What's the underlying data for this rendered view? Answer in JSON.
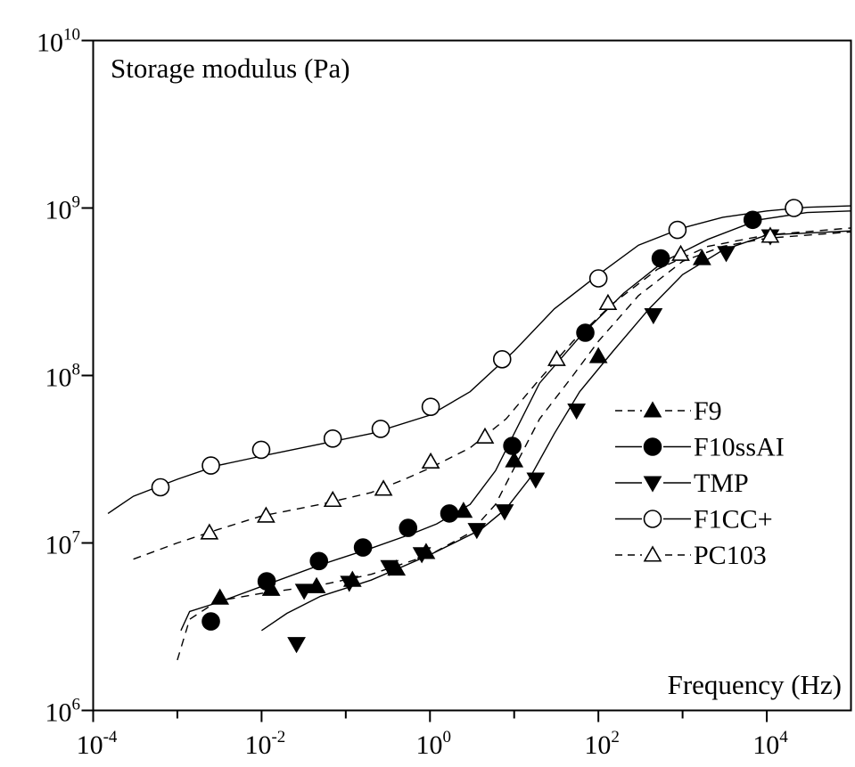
{
  "chart_data": {
    "type": "scatter",
    "x_scale": "log",
    "y_scale": "log",
    "xlim": [
      0.0001,
      100000
    ],
    "ylim": [
      1000000,
      10000000000
    ],
    "xlabel": "Frequency (Hz)",
    "ylabel": "Storage modulus (Pa)",
    "grid": false,
    "legend_position": "right-middle",
    "x_ticks": [
      {
        "base": "10",
        "exp": "-4",
        "value": 0.0001
      },
      {
        "base": "10",
        "exp": "-2",
        "value": 0.01
      },
      {
        "base": "10",
        "exp": "0",
        "value": 1
      },
      {
        "base": "10",
        "exp": "2",
        "value": 100
      },
      {
        "base": "10",
        "exp": "4",
        "value": 10000
      }
    ],
    "x_minor_ticks": [
      0.001,
      0.1,
      10,
      1000
    ],
    "y_ticks": [
      {
        "base": "10",
        "exp": "6",
        "value": 1000000
      },
      {
        "base": "10",
        "exp": "7",
        "value": 10000000
      },
      {
        "base": "10",
        "exp": "8",
        "value": 100000000
      },
      {
        "base": "10",
        "exp": "9",
        "value": 1000000000
      },
      {
        "base": "10",
        "exp": "10",
        "value": 10000000000
      }
    ],
    "series": [
      {
        "name": "F9",
        "marker": "triangle-up-filled",
        "line": "dashed",
        "points": [
          [
            0.0032,
            4700000
          ],
          [
            0.013,
            5300000
          ],
          [
            0.045,
            5500000
          ],
          [
            0.12,
            6000000
          ],
          [
            0.4,
            7000000
          ],
          [
            0.9,
            8800000
          ],
          [
            2.5,
            15500000
          ],
          [
            10,
            31000000
          ],
          [
            100,
            130000000
          ],
          [
            1700,
            500000000
          ]
        ],
        "fit": [
          [
            0.001,
            2000000
          ],
          [
            0.0014,
            3500000
          ],
          [
            0.003,
            4500000
          ],
          [
            0.01,
            5000000
          ],
          [
            0.05,
            5600000
          ],
          [
            0.2,
            6500000
          ],
          [
            1,
            8500000
          ],
          [
            3,
            11500000
          ],
          [
            6,
            17000000
          ],
          [
            10,
            28000000
          ],
          [
            20,
            55000000
          ],
          [
            50,
            100000000
          ],
          [
            100,
            160000000
          ],
          [
            300,
            300000000
          ],
          [
            1000,
            480000000
          ],
          [
            3000,
            590000000
          ],
          [
            10000,
            660000000
          ],
          [
            100000,
            720000000
          ]
        ]
      },
      {
        "name": "F10ssAI",
        "marker": "circle-filled",
        "line": "solid",
        "points": [
          [
            0.0025,
            3400000
          ],
          [
            0.0115,
            5900000
          ],
          [
            0.048,
            7800000
          ],
          [
            0.16,
            9400000
          ],
          [
            0.55,
            12300000
          ],
          [
            1.7,
            15000000
          ],
          [
            9.5,
            38000000
          ],
          [
            70,
            180000000
          ],
          [
            550,
            500000000
          ],
          [
            6800,
            850000000
          ]
        ],
        "fit": [
          [
            0.0011,
            3000000
          ],
          [
            0.0014,
            3900000
          ],
          [
            0.003,
            4400000
          ],
          [
            0.01,
            5500000
          ],
          [
            0.05,
            7400000
          ],
          [
            0.2,
            9300000
          ],
          [
            0.6,
            11300000
          ],
          [
            1.2,
            13000000
          ],
          [
            3,
            17000000
          ],
          [
            6,
            27000000
          ],
          [
            10,
            45000000
          ],
          [
            20,
            90000000
          ],
          [
            60,
            170000000
          ],
          [
            200,
            310000000
          ],
          [
            600,
            480000000
          ],
          [
            2000,
            650000000
          ],
          [
            8000,
            850000000
          ],
          [
            30000,
            940000000
          ],
          [
            100000,
            960000000
          ]
        ]
      },
      {
        "name": "TMP",
        "marker": "triangle-down-filled",
        "line": "solid",
        "points": [
          [
            0.026,
            2500000
          ],
          [
            0.032,
            5200000
          ],
          [
            0.11,
            5800000
          ],
          [
            0.33,
            7200000
          ],
          [
            0.8,
            8600000
          ],
          [
            3.6,
            12000000
          ],
          [
            7.7,
            15500000
          ],
          [
            18,
            24000000
          ],
          [
            55,
            62000000
          ],
          [
            450,
            230000000
          ],
          [
            3300,
            540000000
          ],
          [
            11000,
            680000000
          ]
        ],
        "fit": [
          [
            0.01,
            3000000
          ],
          [
            0.02,
            3800000
          ],
          [
            0.05,
            4800000
          ],
          [
            0.2,
            6000000
          ],
          [
            1,
            8500000
          ],
          [
            4,
            12000000
          ],
          [
            8,
            16000000
          ],
          [
            15,
            24000000
          ],
          [
            30,
            45000000
          ],
          [
            60,
            80000000
          ],
          [
            150,
            140000000
          ],
          [
            400,
            250000000
          ],
          [
            1000,
            400000000
          ],
          [
            3000,
            560000000
          ],
          [
            10000,
            690000000
          ],
          [
            100000,
            730000000
          ]
        ]
      },
      {
        "name": "F1CC+",
        "marker": "circle-open",
        "line": "solid",
        "points": [
          [
            0.00063,
            21500000
          ],
          [
            0.0025,
            29000000
          ],
          [
            0.0099,
            36000000
          ],
          [
            0.07,
            42000000
          ],
          [
            0.26,
            48000000
          ],
          [
            1.02,
            65000000
          ],
          [
            7.2,
            125000000
          ],
          [
            100,
            380000000
          ],
          [
            870,
            740000000
          ],
          [
            21000,
            1000000000
          ]
        ],
        "fit": [
          [
            0.00015,
            15000000
          ],
          [
            0.0003,
            19000000
          ],
          [
            0.001,
            24000000
          ],
          [
            0.003,
            29000000
          ],
          [
            0.01,
            33000000
          ],
          [
            0.05,
            39000000
          ],
          [
            0.2,
            45000000
          ],
          [
            1,
            58000000
          ],
          [
            3,
            80000000
          ],
          [
            10,
            140000000
          ],
          [
            30,
            250000000
          ],
          [
            100,
            400000000
          ],
          [
            300,
            600000000
          ],
          [
            1000,
            760000000
          ],
          [
            3000,
            880000000
          ],
          [
            10000,
            960000000
          ],
          [
            30000,
            1010000000
          ],
          [
            100000,
            1030000000
          ]
        ]
      },
      {
        "name": "PC103",
        "marker": "triangle-up-open",
        "line": "dashed",
        "points": [
          [
            0.0024,
            11500000
          ],
          [
            0.0113,
            14500000
          ],
          [
            0.07,
            18000000
          ],
          [
            0.28,
            21000000
          ],
          [
            1.02,
            30500000
          ],
          [
            4.5,
            43000000
          ],
          [
            32,
            125000000
          ],
          [
            130,
            270000000
          ],
          [
            950,
            530000000
          ],
          [
            11000,
            680000000
          ]
        ],
        "fit": [
          [
            0.0003,
            8000000
          ],
          [
            0.001,
            10000000
          ],
          [
            0.003,
            12000000
          ],
          [
            0.01,
            14500000
          ],
          [
            0.05,
            17000000
          ],
          [
            0.2,
            20000000
          ],
          [
            0.5,
            24000000
          ],
          [
            1,
            28000000
          ],
          [
            3,
            37000000
          ],
          [
            8,
            55000000
          ],
          [
            20,
            95000000
          ],
          [
            50,
            160000000
          ],
          [
            150,
            270000000
          ],
          [
            500,
            430000000
          ],
          [
            2000,
            590000000
          ],
          [
            10000,
            690000000
          ],
          [
            100000,
            760000000
          ]
        ]
      }
    ]
  }
}
